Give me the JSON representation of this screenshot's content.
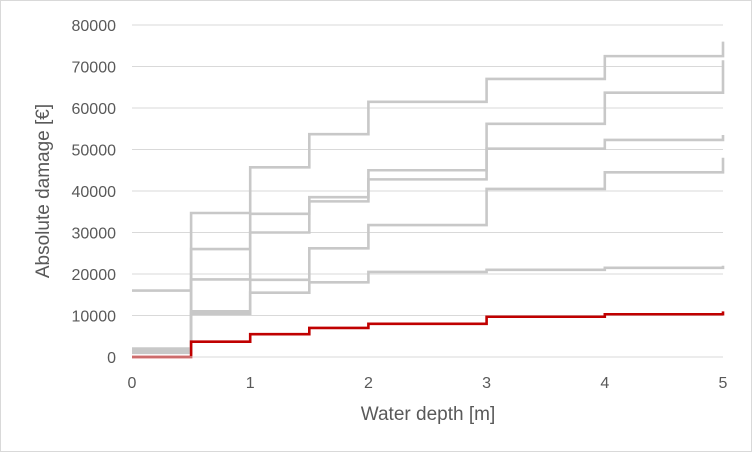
{
  "chart_data": {
    "type": "line",
    "title": "",
    "xlabel": "Water depth [m]",
    "ylabel": "Absolute damage [€]",
    "xlim": [
      0,
      5
    ],
    "ylim": [
      0,
      80000
    ],
    "x_ticks": [
      "0",
      "1",
      "2",
      "3",
      "4",
      "5"
    ],
    "y_ticks": [
      "0",
      "10000",
      "20000",
      "30000",
      "40000",
      "50000",
      "60000",
      "70000",
      "80000"
    ],
    "grid": true,
    "legend": "none",
    "step_interpolation": "step-after",
    "series": [
      {
        "color": "#c8c8c8",
        "x": [
          0,
          0.5,
          1,
          1.5,
          2,
          3,
          4,
          5
        ],
        "y": [
          16000,
          34700,
          45700,
          53700,
          61500,
          67000,
          72500,
          76000
        ]
      },
      {
        "color": "#c8c8c8",
        "x": [
          0,
          0.5,
          1,
          1.5,
          2,
          3,
          4,
          5
        ],
        "y": [
          2000,
          26000,
          34500,
          38500,
          45000,
          56200,
          63700,
          71500
        ]
      },
      {
        "color": "#c8c8c8",
        "x": [
          0,
          0.5,
          1,
          1.5,
          2,
          3,
          4,
          5
        ],
        "y": [
          2000,
          18700,
          30000,
          37500,
          42800,
          50200,
          52300,
          53500
        ]
      },
      {
        "color": "#c8c8c8",
        "x": [
          0,
          0.5,
          1,
          1.5,
          2,
          3,
          4,
          5
        ],
        "y": [
          1500,
          11000,
          18600,
          26200,
          31800,
          40500,
          44500,
          48000
        ]
      },
      {
        "color": "#c8c8c8",
        "x": [
          0,
          0.5,
          1,
          1.5,
          2,
          3,
          4,
          5
        ],
        "y": [
          1000,
          10400,
          15500,
          18000,
          20500,
          21000,
          21500,
          22000
        ]
      },
      {
        "color": "#c00000",
        "x": [
          0,
          0.5,
          1,
          1.5,
          2,
          3,
          4,
          5
        ],
        "y": [
          0,
          3700,
          5500,
          7000,
          8000,
          9700,
          10300,
          11000
        ]
      }
    ]
  }
}
